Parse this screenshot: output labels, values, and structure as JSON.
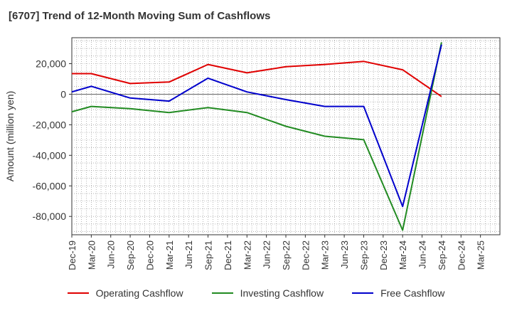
{
  "title": "[6707]  Trend of 12-Month Moving Sum of Cashflows",
  "chart_data": {
    "type": "line",
    "title": "[6707]  Trend of 12-Month Moving Sum of Cashflows",
    "ylabel": "Amount (million yen)",
    "xlabel": "",
    "categories": [
      "Dec-19",
      "Mar-20",
      "Jun-20",
      "Sep-20",
      "Dec-20",
      "Mar-21",
      "Jun-21",
      "Sep-21",
      "Dec-21",
      "Mar-22",
      "Jun-22",
      "Sep-22",
      "Dec-22",
      "Mar-23",
      "Jun-23",
      "Sep-23",
      "Dec-23",
      "Mar-24",
      "Jun-24",
      "Sep-24",
      "Dec-24",
      "Mar-25"
    ],
    "ylim": [
      -92000,
      37000
    ],
    "yticks": [
      20000,
      0,
      -20000,
      -40000,
      -60000,
      -80000
    ],
    "ytick_labels": [
      "20,000",
      "0",
      "-20,000",
      "-40,000",
      "-60,000",
      "-80,000"
    ],
    "grid": true,
    "legend_position": "bottom",
    "series": [
      {
        "name": "Operating Cashflow",
        "color": "#e00000",
        "values": [
          13500,
          13500,
          null,
          7000,
          null,
          8000,
          null,
          19500,
          null,
          14000,
          null,
          18000,
          null,
          19500,
          null,
          21500,
          null,
          16000,
          null,
          -1500,
          null,
          null
        ]
      },
      {
        "name": "Investing Cashflow",
        "color": "#228b22",
        "values": [
          -11500,
          -8000,
          null,
          -9500,
          null,
          -12000,
          null,
          -8800,
          null,
          -12000,
          null,
          -21000,
          null,
          -27500,
          null,
          -29800,
          null,
          -89000,
          null,
          34000,
          null,
          null
        ]
      },
      {
        "name": "Free Cashflow",
        "color": "#0000cc",
        "values": [
          1500,
          5200,
          null,
          -2500,
          null,
          -4500,
          null,
          10500,
          null,
          1500,
          null,
          -3500,
          null,
          -8000,
          null,
          -8000,
          null,
          -73500,
          null,
          32500,
          null,
          null
        ]
      }
    ]
  }
}
